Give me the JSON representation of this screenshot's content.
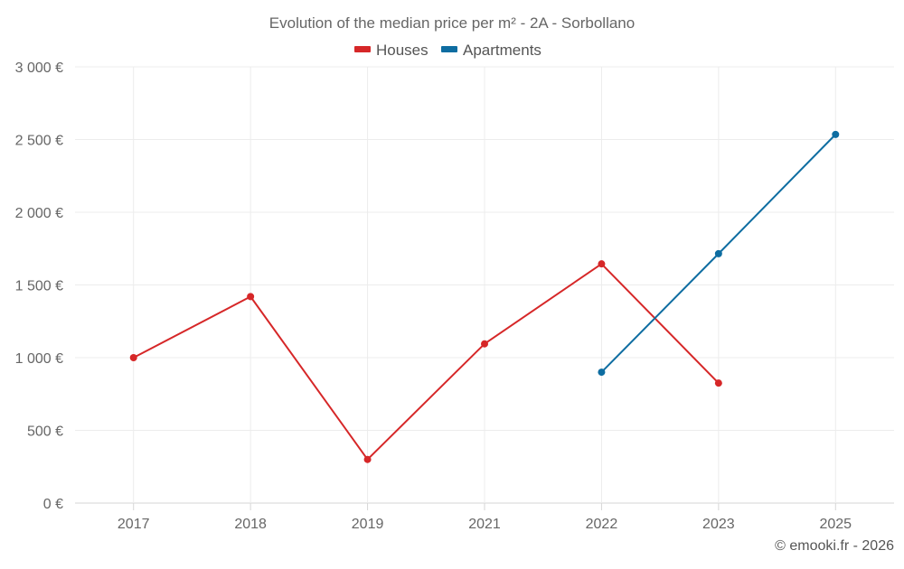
{
  "chart_data": {
    "type": "line",
    "title": "Evolution of the median price per m² - 2A - Sorbollano",
    "categories": [
      "2017",
      "2018",
      "2019",
      "2021",
      "2022",
      "2023",
      "2025"
    ],
    "series": [
      {
        "name": "Houses",
        "color": "#d62728",
        "values": [
          1000,
          1420,
          300,
          1095,
          1645,
          825,
          null
        ]
      },
      {
        "name": "Apartments",
        "color": "#0e6da1",
        "values": [
          null,
          null,
          null,
          null,
          900,
          1715,
          2535
        ]
      }
    ],
    "ylim": [
      0,
      3000
    ],
    "yticks": [
      {
        "value": 0,
        "label": "0 €"
      },
      {
        "value": 500,
        "label": "500 €"
      },
      {
        "value": 1000,
        "label": "1 000 €"
      },
      {
        "value": 1500,
        "label": "1 500 €"
      },
      {
        "value": 2000,
        "label": "2 000 €"
      },
      {
        "value": 2500,
        "label": "2 500 €"
      },
      {
        "value": 3000,
        "label": "3 000 €"
      }
    ],
    "xlabel": "",
    "ylabel": "",
    "grid": true,
    "legend_position": "top-center",
    "credit": "© emooki.fr - 2026"
  }
}
